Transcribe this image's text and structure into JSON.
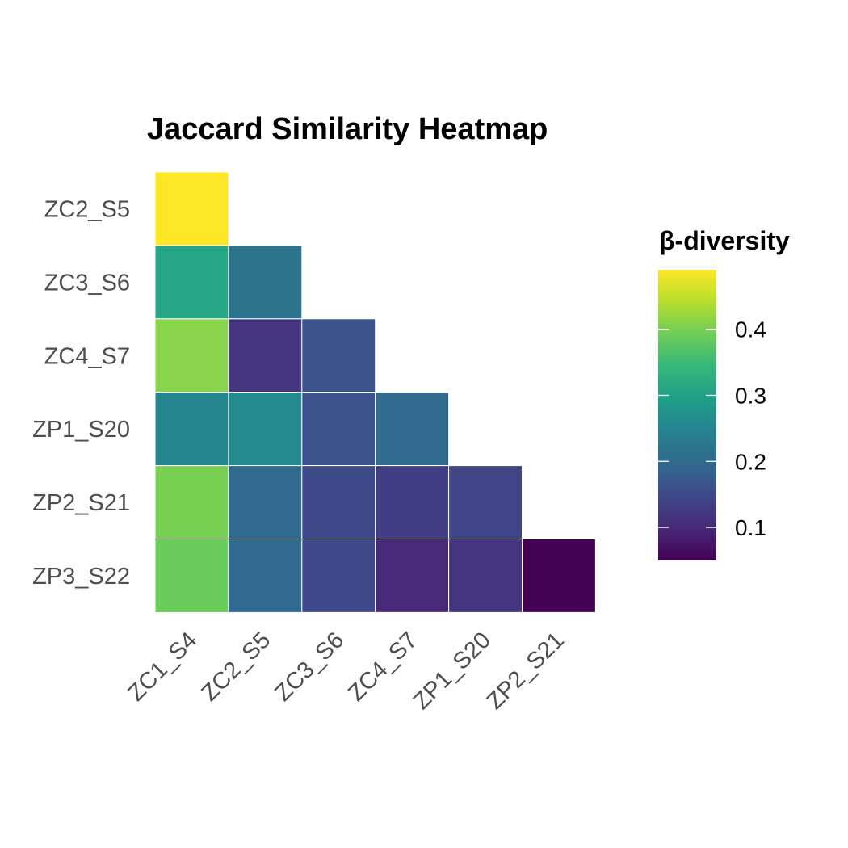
{
  "chart_data": {
    "type": "heatmap",
    "title": "Jaccard Similarity Heatmap",
    "x_categories": [
      "ZC1_S4",
      "ZC2_S5",
      "ZC3_S6",
      "ZC4_S7",
      "ZP1_S20",
      "ZP2_S21"
    ],
    "y_categories": [
      "ZC2_S5",
      "ZC3_S6",
      "ZC4_S7",
      "ZP1_S20",
      "ZP2_S21",
      "ZP3_S22"
    ],
    "cells": [
      {
        "x": "ZC1_S4",
        "y": "ZC2_S5",
        "value": 0.49
      },
      {
        "x": "ZC1_S4",
        "y": "ZC3_S6",
        "value": 0.31
      },
      {
        "x": "ZC2_S5",
        "y": "ZC3_S6",
        "value": 0.22
      },
      {
        "x": "ZC1_S4",
        "y": "ZC4_S7",
        "value": 0.41
      },
      {
        "x": "ZC2_S5",
        "y": "ZC4_S7",
        "value": 0.12
      },
      {
        "x": "ZC3_S6",
        "y": "ZC4_S7",
        "value": 0.16
      },
      {
        "x": "ZC1_S4",
        "y": "ZP1_S20",
        "value": 0.25
      },
      {
        "x": "ZC2_S5",
        "y": "ZP1_S20",
        "value": 0.26
      },
      {
        "x": "ZC3_S6",
        "y": "ZP1_S20",
        "value": 0.16
      },
      {
        "x": "ZC4_S7",
        "y": "ZP1_S20",
        "value": 0.2
      },
      {
        "x": "ZC1_S4",
        "y": "ZP2_S21",
        "value": 0.4
      },
      {
        "x": "ZC2_S5",
        "y": "ZP2_S21",
        "value": 0.2
      },
      {
        "x": "ZC3_S6",
        "y": "ZP2_S21",
        "value": 0.15
      },
      {
        "x": "ZC4_S7",
        "y": "ZP2_S21",
        "value": 0.13
      },
      {
        "x": "ZP1_S20",
        "y": "ZP2_S21",
        "value": 0.14
      },
      {
        "x": "ZC1_S4",
        "y": "ZP3_S22",
        "value": 0.39
      },
      {
        "x": "ZC2_S5",
        "y": "ZP3_S22",
        "value": 0.2
      },
      {
        "x": "ZC3_S6",
        "y": "ZP3_S22",
        "value": 0.15
      },
      {
        "x": "ZC4_S7",
        "y": "ZP3_S22",
        "value": 0.1
      },
      {
        "x": "ZP1_S20",
        "y": "ZP3_S22",
        "value": 0.12
      },
      {
        "x": "ZP2_S21",
        "y": "ZP3_S22",
        "value": 0.05
      }
    ],
    "legend": {
      "title": "β-diversity",
      "breaks": [
        0.1,
        0.2,
        0.3,
        0.4
      ],
      "labels": [
        "0.1",
        "0.2",
        "0.3",
        "0.4"
      ],
      "range": [
        0.05,
        0.49
      ],
      "placement": "right"
    },
    "colorscale": "viridis",
    "colors": [
      "#440154",
      "#482878",
      "#3E4A89",
      "#31688E",
      "#26828E",
      "#1F9E89",
      "#35B779",
      "#6DCD59",
      "#B4DE2C",
      "#FDE725"
    ],
    "grid": false
  }
}
